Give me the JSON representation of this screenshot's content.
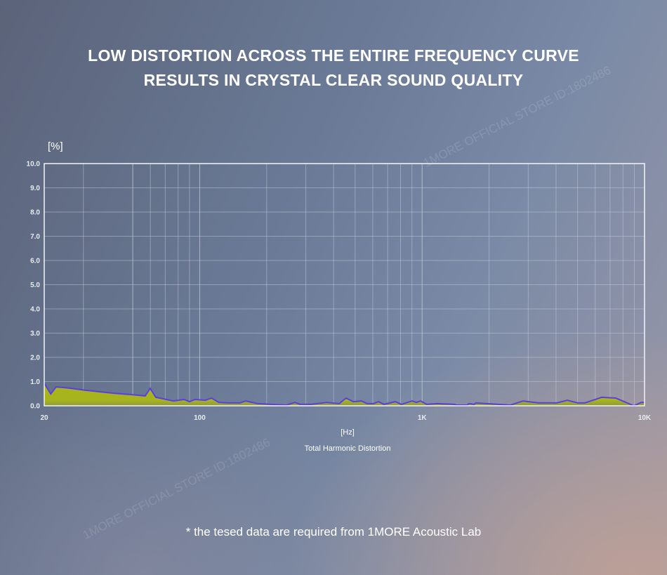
{
  "header": {
    "line1": "LOW DISTORTION ACROSS THE ENTIRE FREQUENCY CURVE",
    "line2": "RESULTS IN CRYSTAL CLEAR SOUND QUALITY"
  },
  "watermark": "1MORE OFFICIAL STORE ID:1802486",
  "footnote": "* the tesed data are required from 1MORE Acoustic Lab",
  "colors": {
    "line": "#5a3fe0",
    "fill": "#a8b41e",
    "grid": "#c9d0dc",
    "axis": "#f2f4f8"
  },
  "chart_data": {
    "type": "area",
    "title": "Total Harmonic Distortion",
    "xlabel": "[Hz]",
    "ylabel": "[%]",
    "xscale": "log",
    "xlim": [
      20,
      10000
    ],
    "ylim": [
      0,
      10
    ],
    "grid": true,
    "yticks": [
      "0.0",
      "1.0",
      "2.0",
      "3.0",
      "4.0",
      "5.0",
      "6.0",
      "7.0",
      "8.0",
      "9.0",
      "10.0"
    ],
    "xticks": [
      {
        "value": 20,
        "label": "20"
      },
      {
        "value": 100,
        "label": "100"
      },
      {
        "value": 1000,
        "label": "1K"
      },
      {
        "value": 10000,
        "label": "10K"
      }
    ],
    "x_gridlines": [
      30,
      50,
      60,
      70,
      80,
      90,
      100,
      200,
      300,
      400,
      500,
      600,
      700,
      800,
      900,
      1000,
      2000,
      3000,
      4000,
      5000,
      6000,
      7000,
      8000,
      9000
    ],
    "series": [
      {
        "name": "THD",
        "x": [
          20,
          21.4,
          22.6,
          24.7,
          26.6,
          30.7,
          35.5,
          41.1,
          49.6,
          56.9,
          59.9,
          63.5,
          70.8,
          76.2,
          85,
          90,
          95.4,
          106,
          113,
          122,
          134,
          152,
          161,
          182,
          245,
          268,
          282,
          317,
          372,
          424,
          455,
          490,
          534,
          566,
          605,
          636,
          674,
          757,
          808,
          902,
          942,
          984,
          1050,
          1170,
          1395,
          1426,
          1590,
          1625,
          1710,
          1747,
          2495,
          2843,
          3337,
          4031,
          4495,
          5012,
          5390,
          6418,
          7421,
          8963,
          9640,
          10000
        ],
        "y": [
          0.93,
          0.49,
          0.78,
          0.75,
          0.72,
          0.64,
          0.58,
          0.52,
          0.46,
          0.41,
          0.72,
          0.35,
          0.26,
          0.2,
          0.26,
          0.17,
          0.26,
          0.23,
          0.32,
          0.14,
          0.12,
          0.12,
          0.2,
          0.09,
          0.03,
          0.14,
          0.06,
          0.06,
          0.14,
          0.09,
          0.32,
          0.17,
          0.2,
          0.09,
          0.09,
          0.17,
          0.06,
          0.17,
          0.06,
          0.2,
          0.14,
          0.2,
          0.06,
          0.09,
          0.06,
          0.03,
          0.03,
          0.09,
          0.06,
          0.12,
          0.03,
          0.2,
          0.12,
          0.12,
          0.23,
          0.12,
          0.12,
          0.35,
          0.32,
          0.0,
          0.14,
          0.14
        ]
      }
    ]
  }
}
